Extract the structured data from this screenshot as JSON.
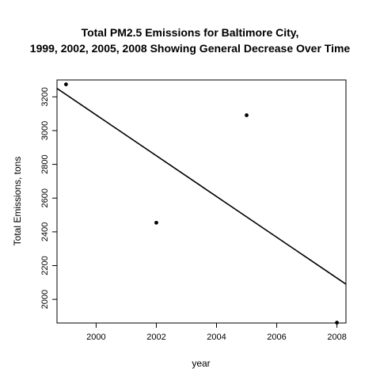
{
  "chart_data": {
    "type": "scatter",
    "title_lines": [
      "Total PM2.5 Emissions for Baltimore City,",
      "1999, 2002, 2005, 2008 Showing General Decrease Over Time"
    ],
    "xlabel": "year",
    "ylabel": "Total Emissions, tons",
    "xlim": [
      1998.7,
      2008.3
    ],
    "ylim": [
      1860,
      3300
    ],
    "xticks": [
      2000,
      2002,
      2004,
      2006,
      2008
    ],
    "yticks": [
      2000,
      2200,
      2400,
      2600,
      2800,
      3000,
      3200
    ],
    "points": [
      {
        "x": 1999,
        "y": 3274
      },
      {
        "x": 2002,
        "y": 2454
      },
      {
        "x": 2005,
        "y": 3091
      },
      {
        "x": 2008,
        "y": 1862
      }
    ],
    "trend_line": {
      "intercept_at_xmin": 3250,
      "value_at_xmax": 2090
    },
    "grid": false,
    "legend": "none"
  }
}
